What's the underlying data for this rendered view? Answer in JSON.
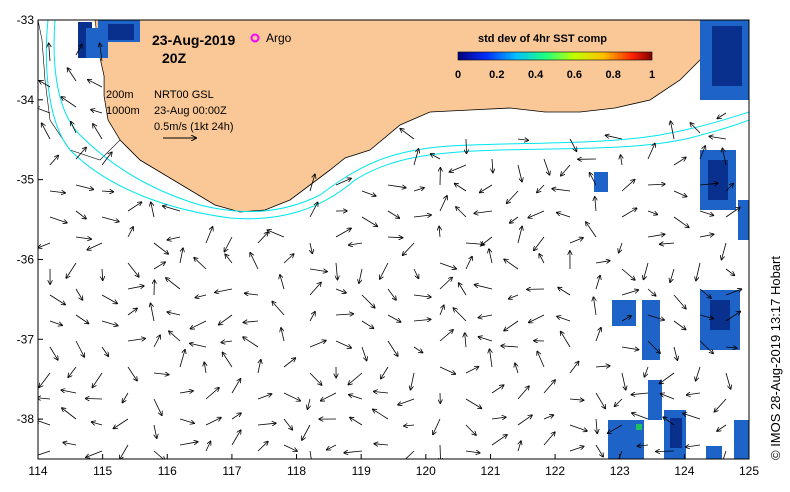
{
  "title": {
    "date": "23-Aug-2019",
    "time": "20Z",
    "argo_label": "Argo"
  },
  "info": {
    "isobath_shallow": "200m",
    "isobath_deep": "1000m",
    "product": "NRT00 GSL",
    "datetime": "23-Aug 00:00Z",
    "scale": "0.5m/s (1kt 24h)"
  },
  "colorbar": {
    "title": "std dev of 4hr SST comp",
    "ticks": [
      "0",
      "0.2",
      "0.4",
      "0.6",
      "0.8",
      "1"
    ]
  },
  "axes": {
    "x_ticks": [
      "114",
      "115",
      "116",
      "117",
      "118",
      "119",
      "120",
      "121",
      "122",
      "123",
      "124",
      "125"
    ],
    "y_ticks": [
      "-33",
      "-34",
      "-35",
      "-36",
      "-37",
      "-38"
    ],
    "lon_range": [
      114,
      125
    ],
    "lat_range": [
      -38.5,
      -33
    ]
  },
  "credit": "© IMOS 28-Aug-2019 13:17 Hobart",
  "colors": {
    "land": "#FAC896",
    "isobath": "#00E5EE",
    "argo": "#FF00FF",
    "sst_dark": "#08308C",
    "sst_mid": "#1E64C8"
  }
}
